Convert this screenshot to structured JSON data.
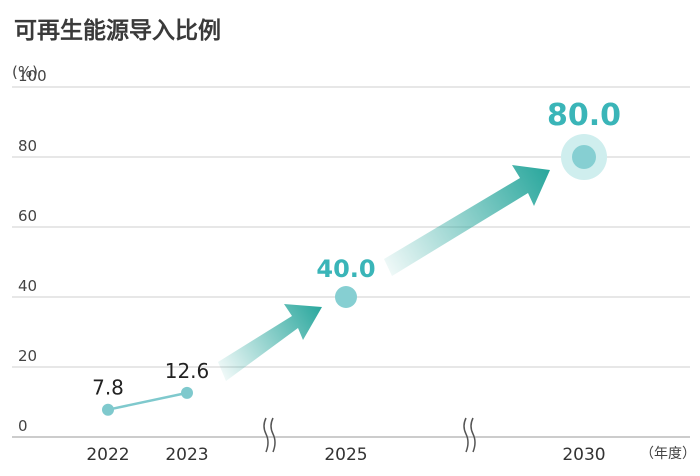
{
  "chart_data": {
    "type": "line",
    "title": "可再生能源导入比例",
    "yunit": "(%)",
    "xunit": "（年度）",
    "ylim": [
      0,
      100
    ],
    "yticks": [
      0,
      20,
      40,
      60,
      80,
      100
    ],
    "grid": true,
    "categories": [
      "2022",
      "2023",
      "2025",
      "2030"
    ],
    "axis_breaks_between": [
      [
        "2023",
        "2025"
      ],
      [
        "2025",
        "2030"
      ]
    ],
    "series": [
      {
        "values": [
          7.8,
          12.6,
          null,
          null
        ],
        "labels": [
          "7.8",
          "12.6",
          null,
          null
        ],
        "color": "#7fc9cd",
        "style": "actual"
      },
      {
        "values": [
          null,
          null,
          40.0,
          80.0
        ],
        "labels": [
          null,
          null,
          "40.0",
          "80.0"
        ],
        "color": "#3ab5b8",
        "style": "target"
      }
    ],
    "arrow_color": "#2aa79d"
  }
}
